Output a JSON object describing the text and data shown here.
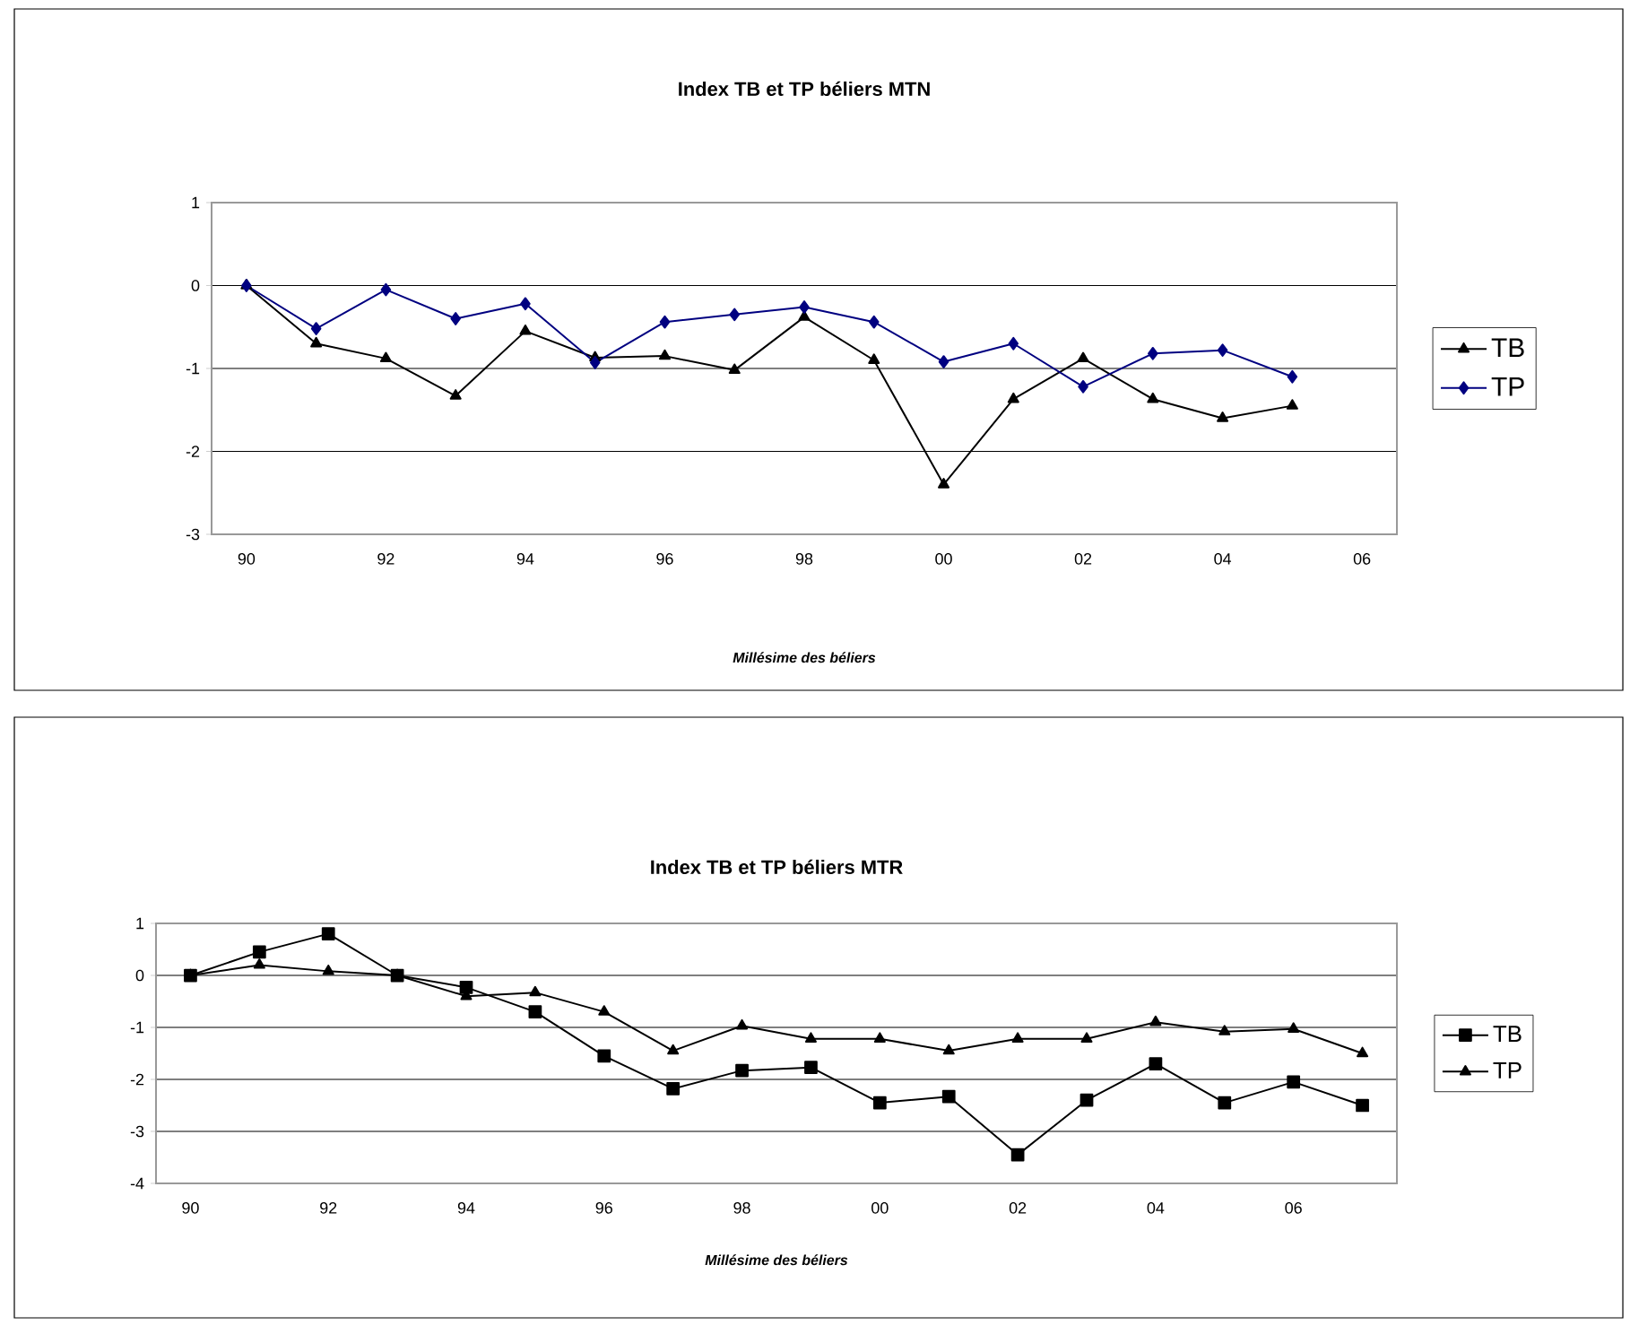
{
  "chart_data": [
    {
      "type": "line",
      "title": "Index TB et TP béliers MTN",
      "xlabel": "Millésime des béliers",
      "categories": [
        "90",
        null,
        "92",
        null,
        "94",
        null,
        "96",
        null,
        "98",
        null,
        "00",
        null,
        "02",
        null,
        "04",
        null,
        "06"
      ],
      "series": [
        {
          "name": "TB",
          "color": "#000000",
          "marker": "triangle",
          "values": [
            0,
            -0.7,
            -0.88,
            -1.33,
            -0.55,
            -0.87,
            -0.85,
            -1.02,
            -0.38,
            -0.9,
            -2.4,
            -1.37,
            -0.88,
            -1.37,
            -1.6,
            -1.45,
            null
          ]
        },
        {
          "name": "TP",
          "color": "#000080",
          "marker": "diamond",
          "values": [
            0,
            -0.52,
            -0.05,
            -0.4,
            -0.22,
            -0.93,
            -0.44,
            -0.35,
            -0.26,
            -0.44,
            -0.92,
            -0.7,
            -1.22,
            -0.82,
            -0.78,
            -1.1,
            null
          ]
        }
      ],
      "ylim": [
        -3,
        1
      ],
      "yticks": [
        -3,
        -2,
        -1,
        0,
        1
      ],
      "grid": "y",
      "legend": "right"
    },
    {
      "type": "line",
      "title": "Index TB et TP béliers MTR",
      "xlabel": "Millésime des béliers",
      "categories": [
        "90",
        null,
        "92",
        null,
        "94",
        null,
        "96",
        null,
        "98",
        null,
        "00",
        null,
        "02",
        null,
        "04",
        null,
        "06",
        null
      ],
      "series": [
        {
          "name": "TB",
          "color": "#000000",
          "marker": "square",
          "values": [
            0,
            0.45,
            0.8,
            0,
            -0.23,
            -0.7,
            -1.55,
            -2.18,
            -1.83,
            -1.77,
            -2.45,
            -2.33,
            -3.45,
            -2.4,
            -1.7,
            -2.45,
            -2.05,
            -2.5
          ]
        },
        {
          "name": "TP",
          "color": "#000000",
          "marker": "triangle",
          "values": [
            0,
            0.2,
            0.08,
            0,
            -0.4,
            -0.33,
            -0.7,
            -1.45,
            -0.97,
            -1.22,
            -1.22,
            -1.45,
            -1.22,
            -1.22,
            -0.9,
            -1.08,
            -1.03,
            -1.5
          ]
        }
      ],
      "ylim": [
        -4,
        1
      ],
      "yticks": [
        -4,
        -3,
        -2,
        -1,
        0,
        1
      ],
      "grid": "y",
      "legend": "right"
    }
  ]
}
